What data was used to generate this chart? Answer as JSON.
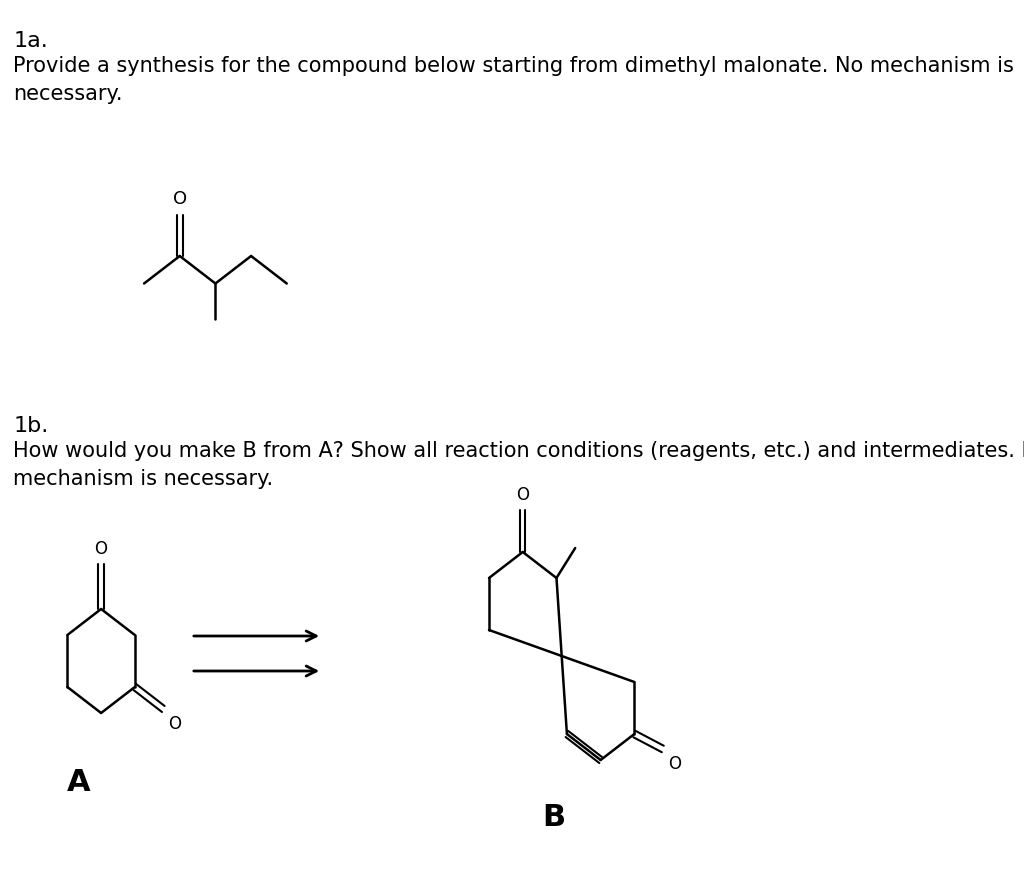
{
  "title": "",
  "bg_color": "#ffffff",
  "text_color": "#000000",
  "label_1a": "1a.",
  "text_1a": "Provide a synthesis for the compound below starting from dimethyl malonate. No mechanism is\nnecessary.",
  "label_1b": "1b.",
  "text_1b": "How would you make B from A? Show all reaction conditions (reagents, etc.) and intermediates. No\nmechanism is necessary.",
  "label_A": "A",
  "label_B": "B",
  "font_size_labels": 16,
  "font_size_text": 15,
  "font_size_AB": 20
}
